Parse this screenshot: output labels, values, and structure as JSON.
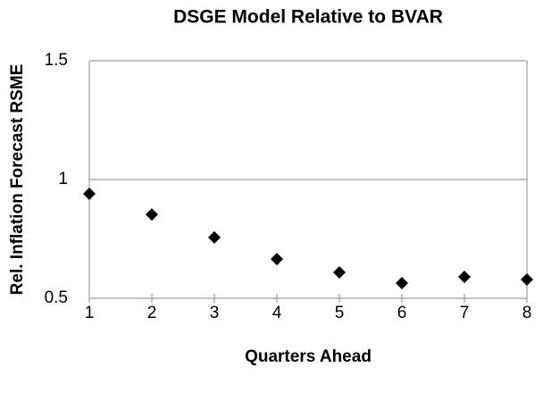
{
  "chart_data": {
    "type": "scatter",
    "title": "DSGE Model Relative to BVAR",
    "x_label": "Quarters Ahead",
    "y_label": "Rel. Inflation Forecast RSME",
    "x": [
      1,
      2,
      3,
      4,
      5,
      6,
      7,
      8
    ],
    "values": [
      0.94,
      0.853,
      0.756,
      0.665,
      0.609,
      0.564,
      0.59,
      0.579
    ],
    "color": "#000000",
    "xlim": [
      1,
      8
    ],
    "xticks": [
      1,
      2,
      3,
      4,
      5,
      6,
      7,
      8
    ],
    "ylim": [
      0.5,
      1.5
    ],
    "yticks": [
      0.5,
      1,
      1.5
    ],
    "grid": true
  }
}
